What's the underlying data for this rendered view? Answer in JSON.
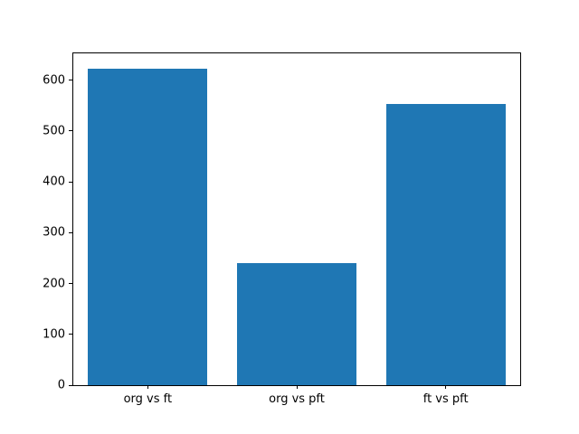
{
  "chart_data": {
    "type": "bar",
    "title": "",
    "xlabel": "",
    "ylabel": "",
    "categories": [
      "org vs ft",
      "org vs pft",
      "ft vs pft"
    ],
    "values": [
      622,
      240,
      554
    ],
    "ylim": [
      0,
      653
    ],
    "yticks": [
      0,
      100,
      200,
      300,
      400,
      500,
      600
    ],
    "bar_color": "#1f77b4",
    "axis_color": "#000000",
    "background": "#ffffff",
    "grid": false,
    "legend": null
  }
}
